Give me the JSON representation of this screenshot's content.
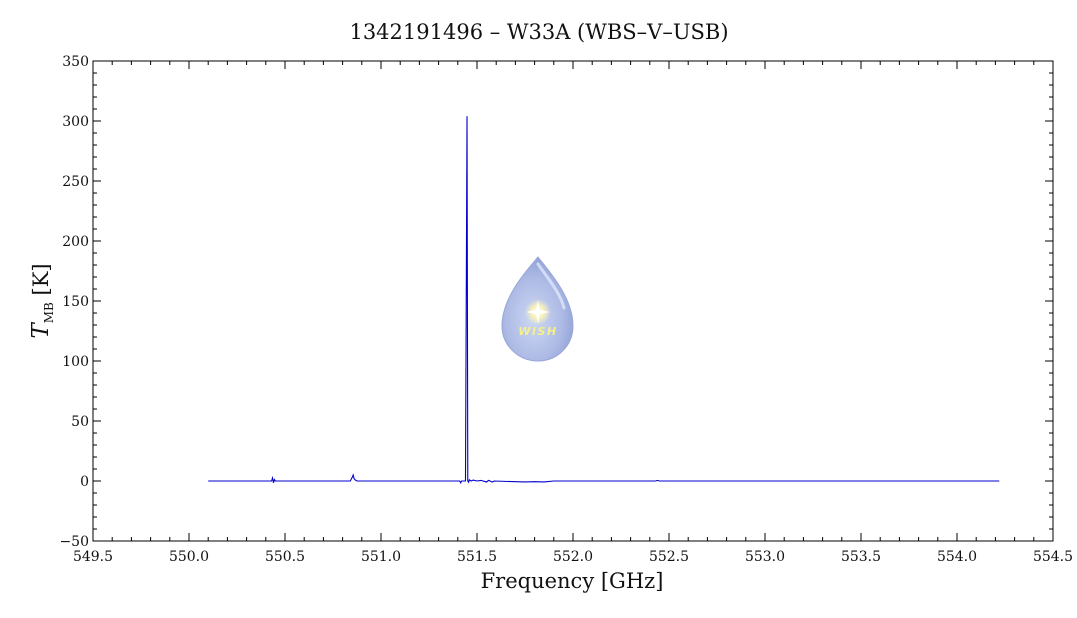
{
  "chart_data": {
    "type": "line",
    "title": "1342191496 – W33A (WBS–V–USB)",
    "xlabel": "Frequency [GHz]",
    "ylabel": {
      "main": "T",
      "sub": "MB",
      "unit": " [K]"
    },
    "xlim": [
      549.5,
      554.5
    ],
    "ylim": [
      -50,
      350
    ],
    "xticks": [
      "549.5",
      "550.0",
      "550.5",
      "551.0",
      "551.5",
      "552.0",
      "552.5",
      "553.0",
      "553.5",
      "554.0",
      "554.5"
    ],
    "yticks": [
      "−50",
      "0",
      "50",
      "100",
      "150",
      "200",
      "250",
      "300",
      "350"
    ],
    "grid": false,
    "line_color": "#0000cc",
    "series": [
      {
        "name": "",
        "x": [
          550.1,
          550.43,
          550.435,
          550.44,
          550.445,
          550.45,
          550.84,
          550.85,
          550.855,
          550.86,
          550.865,
          550.875,
          551.41,
          551.415,
          551.42,
          551.44,
          551.448,
          551.452,
          551.456,
          551.46,
          551.47,
          551.48,
          551.5,
          551.52,
          551.55,
          551.56,
          551.58,
          551.59,
          551.7,
          551.75,
          551.8,
          551.85,
          551.9,
          552.43,
          552.44,
          552.45,
          554.22
        ],
        "y": [
          0,
          0,
          2.5,
          -1.5,
          1.2,
          0,
          0,
          3,
          5,
          2,
          1,
          0,
          0,
          -1.5,
          0,
          0,
          304,
          0,
          -1,
          1,
          0,
          0.8,
          0,
          0.5,
          -0.8,
          0.5,
          -0.8,
          0,
          -0.6,
          -0.8,
          -0.6,
          -0.8,
          0,
          0,
          0.5,
          0,
          0
        ]
      }
    ],
    "watermark": {
      "text": "WISH",
      "icon": "water-drop-star-logo"
    }
  }
}
